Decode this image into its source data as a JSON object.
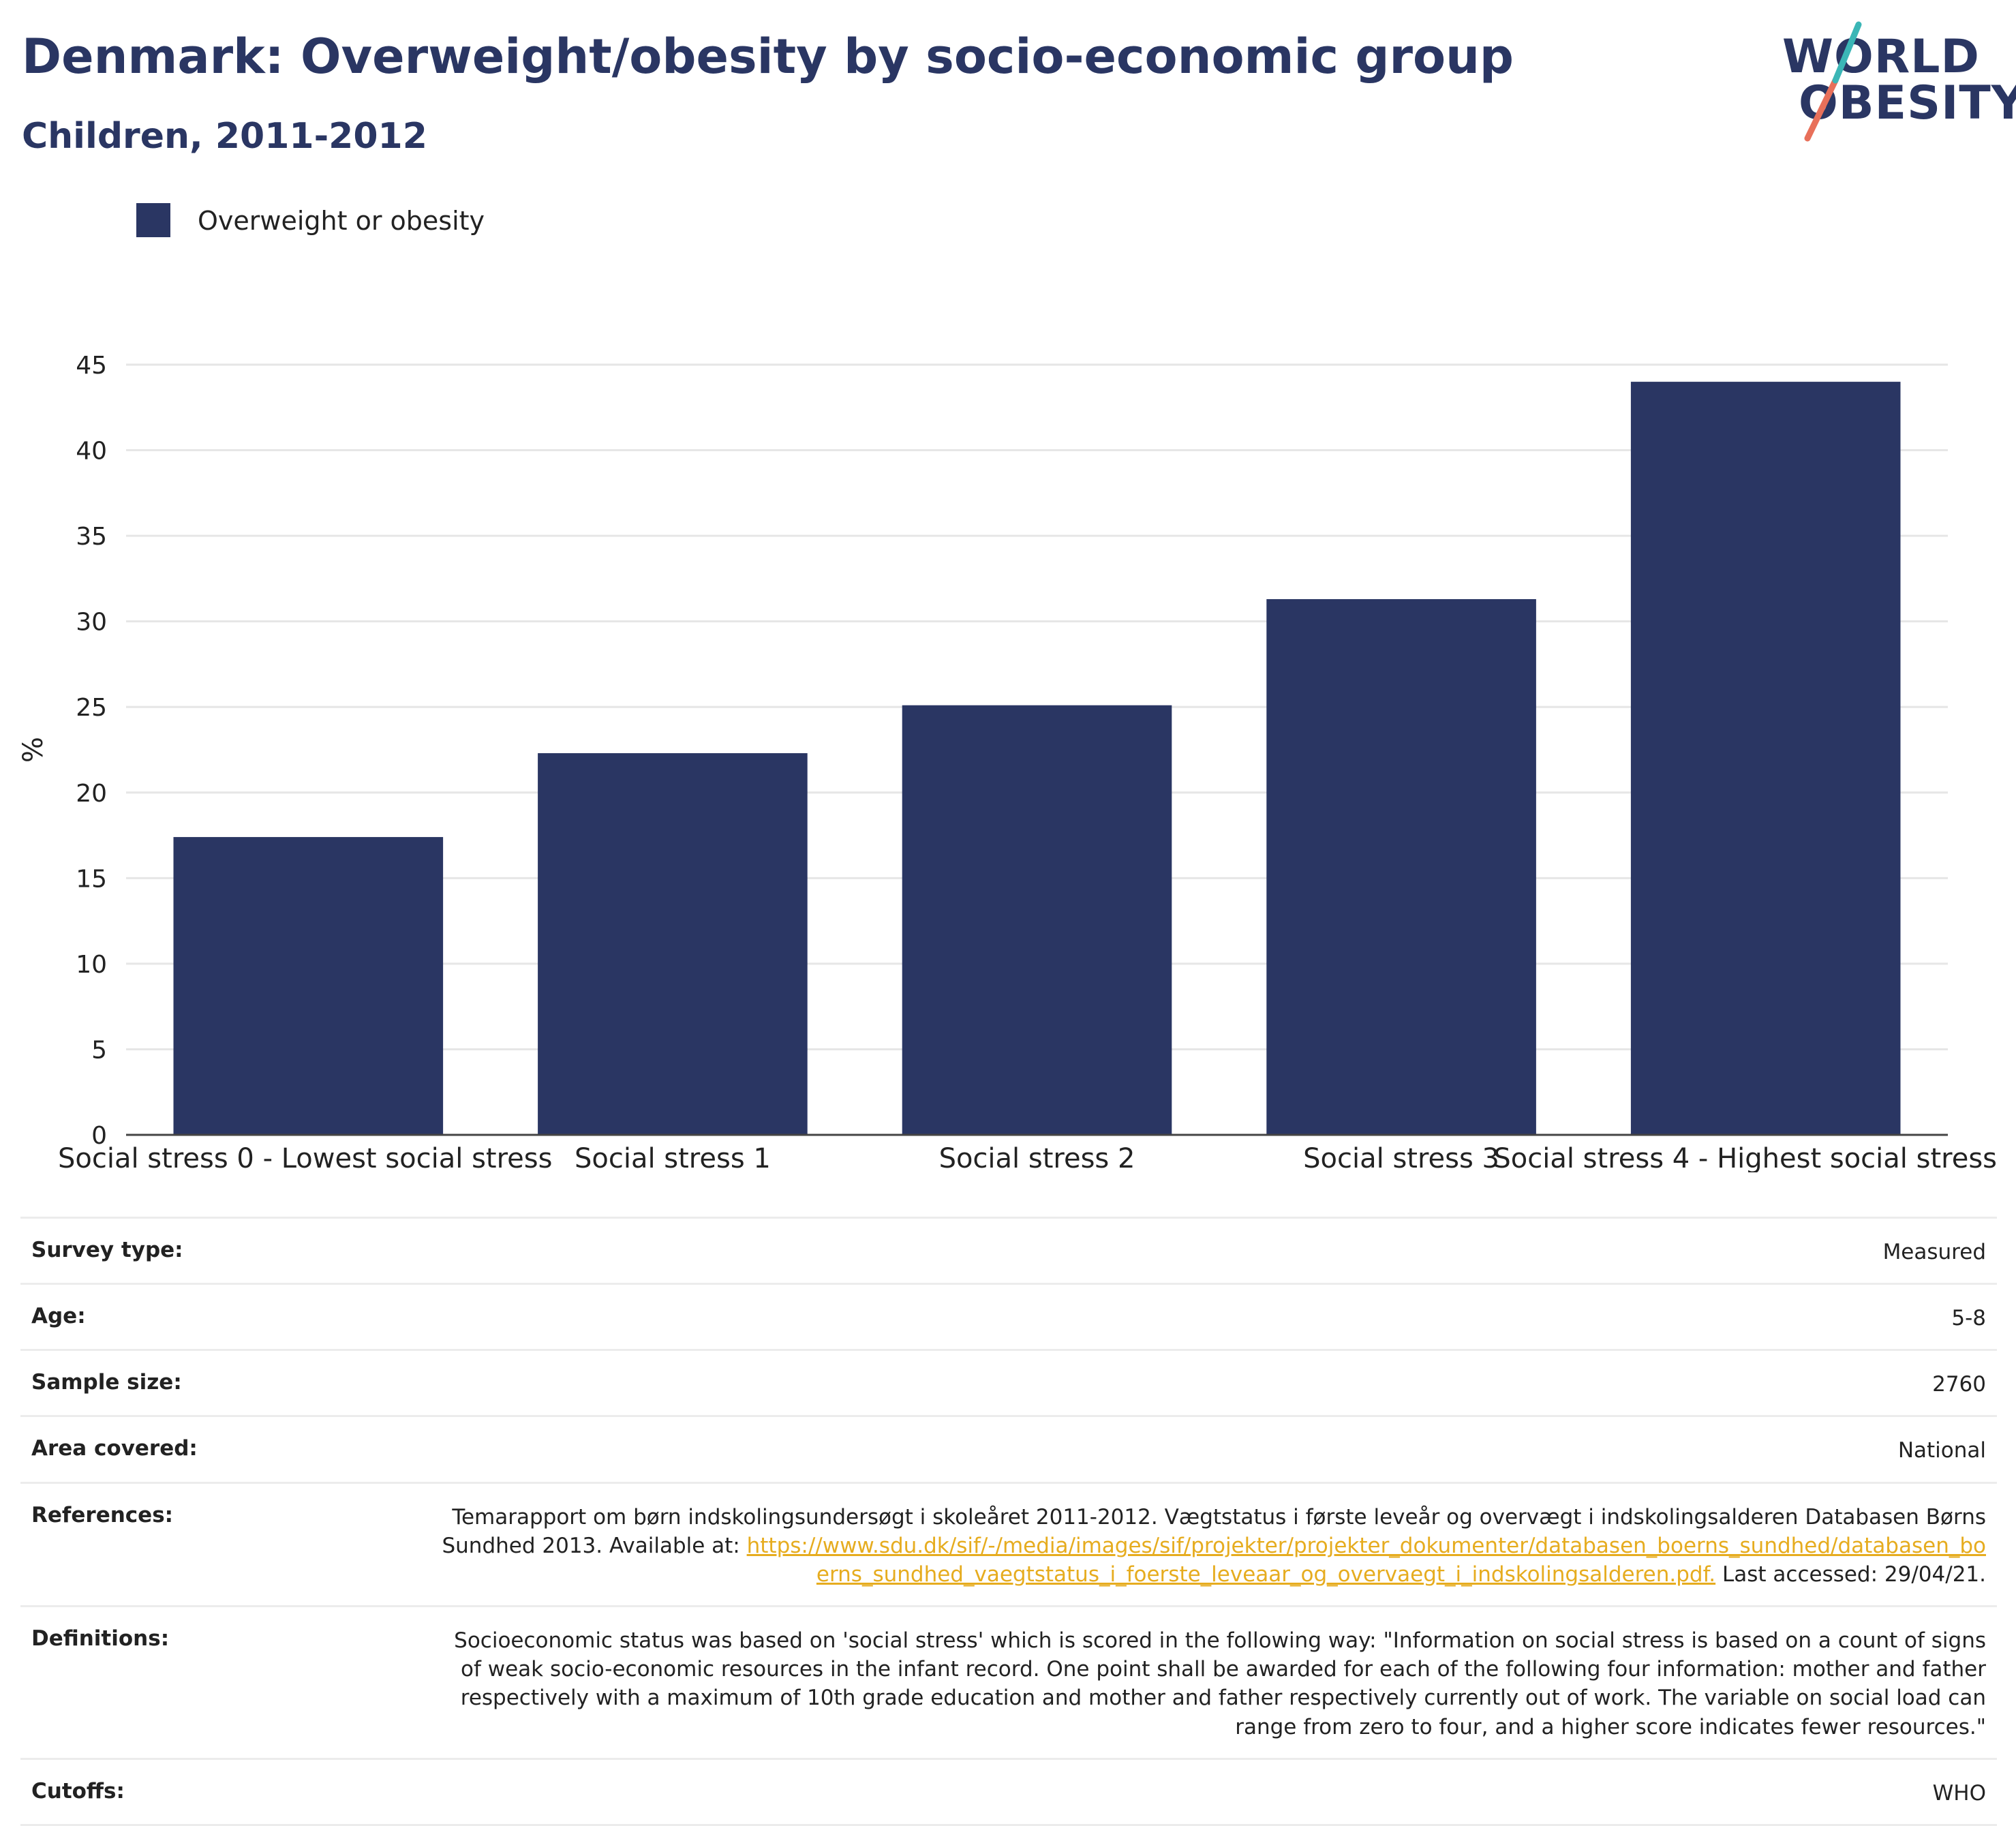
{
  "title": "Denmark: Overweight/obesity by socio-economic group",
  "subtitle": "Children, 2011-2012",
  "logo": {
    "line1": "WORLD",
    "line2": "OBESITY",
    "colors": {
      "navy": "#2a3663",
      "teal": "#3bb6b6",
      "coral": "#e8705a"
    }
  },
  "legend": [
    {
      "label": "Overweight or obesity",
      "color": "#2a3663"
    }
  ],
  "chart_data": {
    "type": "bar",
    "categories": [
      "Social stress 0 - Lowest social stress",
      "Social stress 1",
      "Social stress 2",
      "Social stress 3",
      "Social stress 4 - Highest social stress"
    ],
    "series": [
      {
        "name": "Overweight or obesity",
        "values": [
          17.4,
          22.3,
          25.1,
          31.3,
          44.0
        ],
        "color": "#2a3663"
      }
    ],
    "ylabel": "%",
    "ylim": [
      0,
      45
    ],
    "yticks": [
      0,
      5,
      10,
      15,
      20,
      25,
      30,
      35,
      40,
      45
    ],
    "grid": true,
    "legend_position": "top-left"
  },
  "info": {
    "survey_type": {
      "label": "Survey type:",
      "value": "Measured"
    },
    "age": {
      "label": "Age:",
      "value": "5-8"
    },
    "sample_size": {
      "label": "Sample size:",
      "value": "2760"
    },
    "area_covered": {
      "label": "Area covered:",
      "value": "National"
    },
    "references": {
      "label": "References:",
      "text": "Temarapport om børn indskolingsundersøgt i skoleåret 2011-2012. Vægtstatus i første leveår og overvægt i indskolingsalderen Databasen Børns Sundhed 2013. Available at: ",
      "link": "https://www.sdu.dk/sif/-/media/images/sif/projekter/projekter_dokumenter/databasen_boerns_sundhed/databasen_boerns_sundhed_vaegtstatus_i_foerste_leveaar_og_overvaegt_i_indskolingsalderen.pdf.",
      "suffix": " Last accessed: 29/04/21."
    },
    "definitions": {
      "label": "Definitions:",
      "value": "Socioeconomic status was based on 'social stress' which is scored in the following way: \"Information on social stress is based on a count of signs of weak socio-economic resources in the infant record. One point shall be awarded for each of the following four information: mother and father respectively with a maximum of 10th grade education and mother and father respectively currently out of work. The variable on social load can range from zero to four, and a higher score indicates fewer resources.\""
    },
    "cutoffs": {
      "label": "Cutoffs:",
      "value": "WHO"
    }
  }
}
